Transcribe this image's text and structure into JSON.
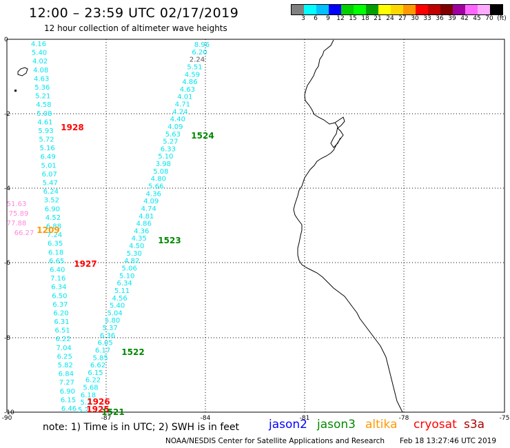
{
  "header": {
    "title": "12:00 – 23:59 UTC 02/17/2019",
    "subtitle": "12 hour collection of altimeter wave heights"
  },
  "colorbar": {
    "colors": [
      "#808080",
      "#00ffff",
      "#00c0ff",
      "#0000ff",
      "#00d000",
      "#00ff00",
      "#00a000",
      "#ffff00",
      "#ffd700",
      "#ff9900",
      "#ff0000",
      "#c00000",
      "#800000",
      "#a000a0",
      "#ff66ff",
      "#ffaaff",
      "#000000"
    ],
    "labels": [
      "3",
      "6",
      "9",
      "12",
      "15",
      "18",
      "21",
      "24",
      "27",
      "30",
      "33",
      "36",
      "39",
      "42",
      "45",
      "70",
      "(ft)"
    ]
  },
  "axes": {
    "y_ticks": [
      "0",
      "-2",
      "-4",
      "-6",
      "-8",
      "-10"
    ],
    "x_ticks": [
      "-90",
      "-87",
      "-84",
      "-81",
      "-78",
      "-75"
    ]
  },
  "tracks": [
    {
      "name": "jason3-left",
      "color": "#00e5ee",
      "values": [
        "4.16",
        "5.40",
        "4.02",
        "4.08",
        "4.63",
        "5.36",
        "5.21",
        "4.58",
        "5.08",
        "4.61",
        "5.93",
        "5.72",
        "5.16",
        "6.49",
        "5.01",
        "6.07",
        "5.47",
        "6.24",
        "3.52",
        "6.90",
        "4.52",
        "6.88",
        "7.24",
        "6.35",
        "6.18",
        "6.65",
        "6.40",
        "7.16",
        "6.34",
        "6.50",
        "6.37",
        "6.20",
        "6.31",
        "6.51",
        "6.22",
        "7.04",
        "6.25",
        "5.82",
        "6.84",
        "7.27",
        "6.90",
        "6.15",
        "6.46"
      ]
    },
    {
      "name": "jason3-right",
      "color": "#00e5ee",
      "values": [
        "8.96",
        "6.20",
        "2.24",
        "5.51",
        "4.59",
        "4.86",
        "4.63",
        "4.01",
        "4.71",
        "4.24",
        "4.40",
        "4.09",
        "5.63",
        "5.27",
        "6.33",
        "5.10",
        "3.98",
        "5.08",
        "4.80",
        "5.66",
        "4.36",
        "4.09",
        "4.74",
        "4.81",
        "4.86",
        "4.36",
        "4.35",
        "4.50",
        "5.30",
        "4.82",
        "5.06",
        "5.10",
        "6.34",
        "5.11",
        "4.56",
        "5.40",
        "5.04",
        "5.80",
        "5.37",
        "6.36",
        "6.05",
        "6.17",
        "5.85",
        "6.62",
        "6.15",
        "6.22",
        "5.68",
        "6.18",
        "5.2",
        "5.2"
      ]
    },
    {
      "name": "altika",
      "color": "#ff88dd",
      "values": [
        "51.63",
        "75.89",
        "77.88",
        "66.27"
      ]
    }
  ],
  "time_labels": [
    {
      "text": "1928",
      "color": "#ff0000"
    },
    {
      "text": "1524",
      "color": "#008800"
    },
    {
      "text": "1523",
      "color": "#008800"
    },
    {
      "text": "1927",
      "color": "#ff0000"
    },
    {
      "text": "1522",
      "color": "#008800"
    },
    {
      "text": "1926",
      "color": "#ff0000"
    },
    {
      "text": "1925",
      "color": "#ff0000"
    },
    {
      "text": "1521",
      "color": "#008800"
    },
    {
      "text": "1209",
      "color": "#ff9900"
    }
  ],
  "footer": {
    "note": "note:  1) Time is in UTC;  2) SWH is in feet",
    "satellites": [
      {
        "name": "jason2",
        "color": "#0000ff"
      },
      {
        "name": "jason3",
        "color": "#008800"
      },
      {
        "name": "altika",
        "color": "#ff9900"
      },
      {
        "name": "cryosat",
        "color": "#ff0000"
      },
      {
        "name": "s3a",
        "color": "#aa0000"
      }
    ],
    "credit": "NOAA/NESDIS Center for Satellite Applications and Research",
    "timestamp": "Feb 18 13:27:46 UTC 2019"
  }
}
